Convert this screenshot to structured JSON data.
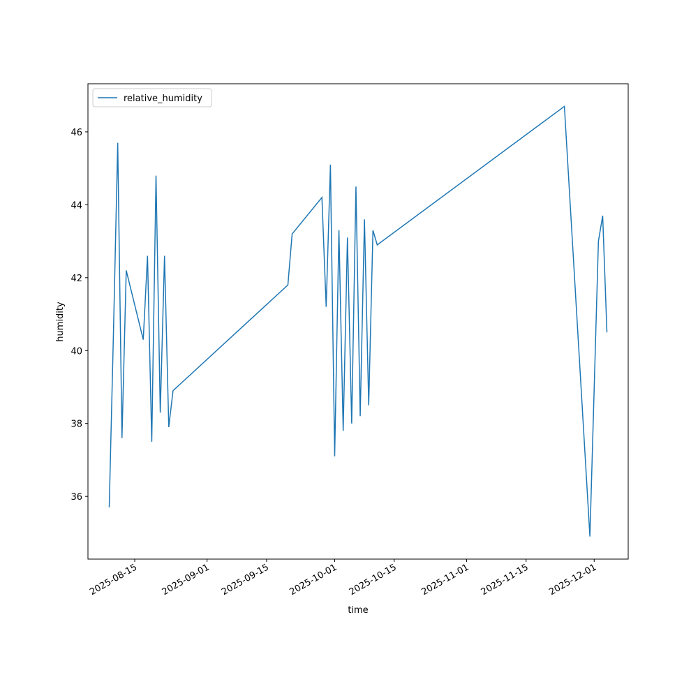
{
  "chart_data": {
    "type": "line",
    "x_label": "time",
    "y_label": "humidity",
    "x": [
      "2025-08-09",
      "2025-08-10",
      "2025-08-11",
      "2025-08-12",
      "2025-08-13",
      "2025-08-17",
      "2025-08-18",
      "2025-08-19",
      "2025-08-20",
      "2025-08-21",
      "2025-08-22",
      "2025-08-23",
      "2025-08-24",
      "2025-09-20",
      "2025-09-21",
      "2025-09-28",
      "2025-09-29",
      "2025-09-30",
      "2025-10-01",
      "2025-10-02",
      "2025-10-03",
      "2025-10-04",
      "2025-10-05",
      "2025-10-06",
      "2025-10-07",
      "2025-10-08",
      "2025-10-09",
      "2025-10-10",
      "2025-10-11",
      "2025-11-24",
      "2025-11-30",
      "2025-12-02",
      "2025-12-03",
      "2025-12-04"
    ],
    "series": [
      {
        "name": "relative_humidity",
        "color": "#1f77b4",
        "values": [
          35.7,
          40.5,
          45.7,
          37.6,
          42.2,
          40.3,
          42.6,
          37.5,
          44.8,
          38.3,
          42.6,
          37.9,
          38.9,
          41.8,
          43.2,
          44.2,
          41.2,
          45.1,
          37.1,
          43.3,
          37.8,
          43.1,
          38.0,
          44.5,
          38.2,
          43.6,
          38.5,
          43.3,
          42.9,
          46.7,
          34.9,
          43.0,
          43.7,
          40.5
        ]
      }
    ],
    "xlim": [
      "2025-08-04",
      "2025-12-09"
    ],
    "xticks": [
      "2025-08-15",
      "2025-09-01",
      "2025-09-15",
      "2025-10-01",
      "2025-10-15",
      "2025-11-01",
      "2025-11-15",
      "2025-12-01"
    ],
    "ylim": [
      34.28,
      47.32
    ],
    "yticks": [
      36,
      38,
      40,
      42,
      44,
      46
    ],
    "legend": "upper left",
    "grid": false
  }
}
